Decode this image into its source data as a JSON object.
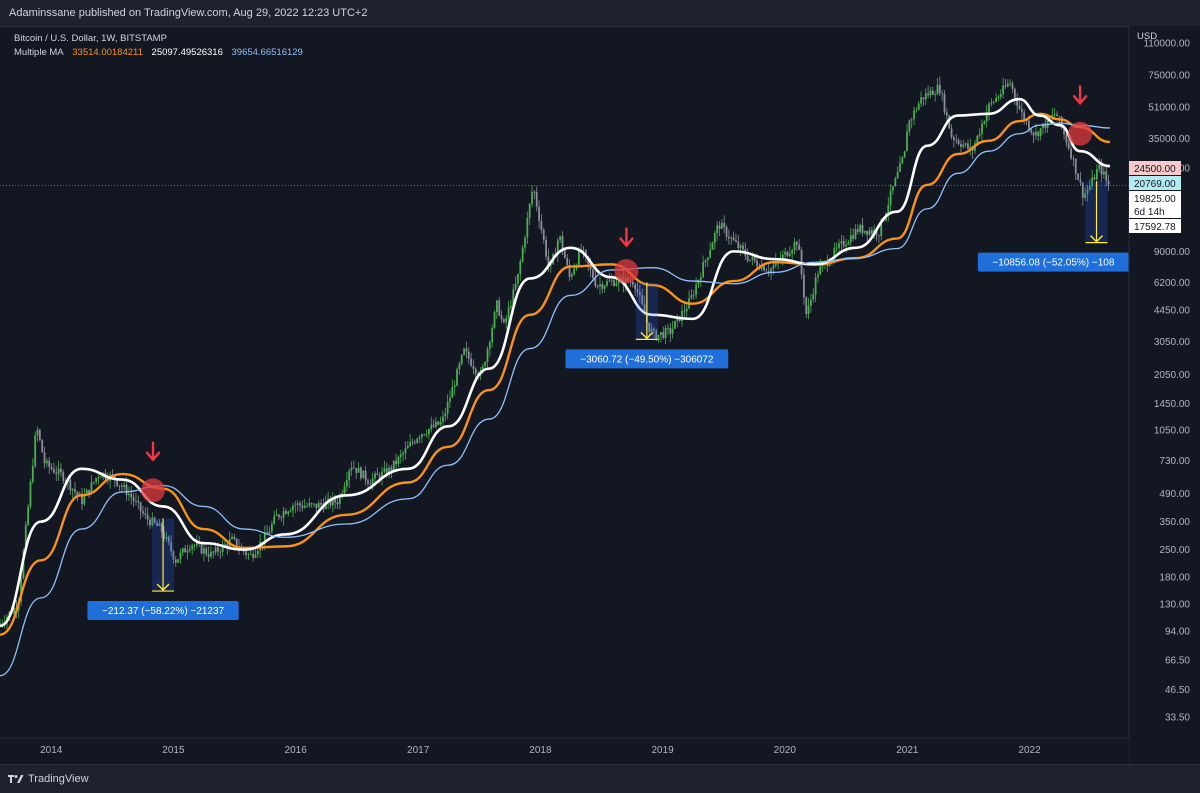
{
  "header": {
    "published_text": "Adaminssane published on TradingView.com, Aug 29, 2022 12:23 UTC+2"
  },
  "footer": {
    "brand": "TradingView"
  },
  "legend": {
    "symbol_line": "Bitcoin / U.S. Dollar, 1W, BITSTAMP",
    "indicator_name": "Multiple MA",
    "ma_values": [
      {
        "value": "33514.00184211",
        "color": "#f7931a"
      },
      {
        "value": "25097.49526316",
        "color": "#ffffff"
      },
      {
        "value": "39654.66516129",
        "color": "#90bff9"
      }
    ]
  },
  "colors": {
    "background": "#131722",
    "up_candle": "#4caf50",
    "down_candle": "#8a8e99",
    "ma_orange": "#f7931a",
    "ma_white": "#ffffff",
    "ma_blue": "#90bff9",
    "arrow_red": "#f23645",
    "circle_red": "#e0393e",
    "badge_blue": "#2962ff",
    "measure_yellow": "#ffeb3b"
  },
  "chart_data": {
    "type": "line",
    "title": "Bitcoin / U.S. Dollar, 1W, BITSTAMP",
    "y_scale": "log",
    "y_unit": "USD",
    "ylim": [
      26,
      135000
    ],
    "x_range": [
      "2013-08-01",
      "2022-10-25"
    ],
    "x_tick_labels": [
      "2014",
      "2015",
      "2016",
      "2017",
      "2018",
      "2019",
      "2020",
      "2021",
      "2022"
    ],
    "y_tick_labels": [
      "110000.00",
      "75000.00",
      "51000.00",
      "35000.00",
      "24500.00",
      "9000.00",
      "6200.00",
      "4450.00",
      "3050.00",
      "2050.00",
      "1450.00",
      "1050.00",
      "730.00",
      "490.00",
      "350.00",
      "250.00",
      "180.00",
      "130.00",
      "94.00",
      "66.50",
      "46.50",
      "33.50"
    ],
    "series": [
      {
        "kind": "price",
        "x": [
          "2013-08-01",
          "2013-10-01",
          "2013-11-25",
          "2013-12-20",
          "2014-02-15",
          "2014-04-10",
          "2014-06-01",
          "2014-07-15",
          "2014-09-01",
          "2014-10-15",
          "2014-12-01",
          "2015-01-15",
          "2015-03-01",
          "2015-05-01",
          "2015-07-01",
          "2015-08-25",
          "2015-10-15",
          "2015-11-10",
          "2016-01-01",
          "2016-03-01",
          "2016-05-15",
          "2016-06-20",
          "2016-08-15",
          "2016-10-15",
          "2016-12-20",
          "2017-01-10",
          "2017-03-20",
          "2017-05-25",
          "2017-07-15",
          "2017-09-01",
          "2017-09-20",
          "2017-11-01",
          "2017-12-17",
          "2018-02-05",
          "2018-03-05",
          "2018-04-05",
          "2018-05-10",
          "2018-06-25",
          "2018-08-15",
          "2018-10-15",
          "2018-11-25",
          "2018-12-15",
          "2019-02-01",
          "2019-04-01",
          "2019-06-25",
          "2019-08-10",
          "2019-09-25",
          "2019-11-25",
          "2020-01-15",
          "2020-02-15",
          "2020-03-13",
          "2020-04-15",
          "2020-06-15",
          "2020-08-15",
          "2020-10-15",
          "2020-11-25",
          "2020-12-31",
          "2021-01-08",
          "2021-02-20",
          "2021-04-14",
          "2021-05-20",
          "2021-07-20",
          "2021-09-07",
          "2021-10-20",
          "2021-11-10",
          "2021-12-15",
          "2022-01-24",
          "2022-02-15",
          "2022-03-28",
          "2022-05-10",
          "2022-06-18",
          "2022-07-10",
          "2022-08-01",
          "2022-08-14",
          "2022-08-29"
        ],
        "y": [
          100,
          130,
          1100,
          700,
          600,
          450,
          630,
          590,
          480,
          370,
          320,
          220,
          270,
          235,
          280,
          230,
          300,
          370,
          430,
          420,
          450,
          700,
          570,
          650,
          900,
          1000,
          1150,
          2700,
          2000,
          4800,
          3600,
          6500,
          19800,
          7000,
          11000,
          6600,
          9200,
          6000,
          6300,
          6300,
          3700,
          3250,
          3450,
          5000,
          12500,
          10000,
          8200,
          7200,
          8900,
          10300,
          4100,
          7000,
          9300,
          11800,
          11400,
          19000,
          29000,
          41000,
          57000,
          64800,
          36000,
          30000,
          51000,
          62000,
          69000,
          47000,
          36500,
          40000,
          47500,
          30000,
          17592.78,
          20000,
          24500,
          23500,
          20000
        ]
      },
      {
        "name": "33514.00184211",
        "x": [
          "2013-08-01",
          "2013-12-01",
          "2014-04-01",
          "2014-08-01",
          "2014-12-01",
          "2015-04-01",
          "2015-08-01",
          "2015-12-01",
          "2016-06-01",
          "2016-12-01",
          "2017-04-01",
          "2017-08-01",
          "2017-12-01",
          "2018-04-01",
          "2018-08-01",
          "2018-12-01",
          "2019-04-01",
          "2019-08-01",
          "2019-12-01",
          "2020-04-01",
          "2020-08-01",
          "2020-12-01",
          "2021-03-01",
          "2021-06-01",
          "2021-09-01",
          "2021-12-01",
          "2022-02-01",
          "2022-04-01",
          "2022-06-01",
          "2022-08-29"
        ],
        "y": [
          90,
          220,
          480,
          620,
          520,
          320,
          255,
          260,
          380,
          560,
          860,
          1700,
          4200,
          7500,
          7700,
          6000,
          4800,
          6300,
          7900,
          7700,
          8300,
          10500,
          20000,
          29000,
          34000,
          43000,
          47000,
          44000,
          40000,
          33514
        ]
      },
      {
        "name": "25097.49526316",
        "x": [
          "2013-08-01",
          "2013-12-01",
          "2014-04-01",
          "2014-08-01",
          "2014-12-01",
          "2015-04-01",
          "2015-08-01",
          "2015-12-01",
          "2016-06-01",
          "2016-12-01",
          "2017-04-01",
          "2017-08-01",
          "2017-12-01",
          "2018-04-01",
          "2018-08-01",
          "2018-12-01",
          "2019-04-01",
          "2019-08-01",
          "2019-12-01",
          "2020-04-01",
          "2020-08-01",
          "2020-12-01",
          "2021-03-01",
          "2021-06-01",
          "2021-09-01",
          "2021-12-01",
          "2022-02-01",
          "2022-04-01",
          "2022-06-01",
          "2022-08-29"
        ],
        "y": [
          100,
          350,
          660,
          580,
          420,
          270,
          250,
          300,
          480,
          660,
          1100,
          2200,
          6500,
          9400,
          6600,
          4200,
          4000,
          9000,
          8200,
          7700,
          9400,
          14500,
          32000,
          46000,
          47000,
          56000,
          46000,
          41000,
          30000,
          25097
        ]
      },
      {
        "name": "39654.66516129",
        "x": [
          "2013-08-01",
          "2013-12-01",
          "2014-04-01",
          "2014-08-01",
          "2014-12-01",
          "2015-04-01",
          "2015-08-01",
          "2015-12-01",
          "2016-06-01",
          "2016-12-01",
          "2017-04-01",
          "2017-08-01",
          "2017-12-01",
          "2018-04-01",
          "2018-08-01",
          "2018-12-01",
          "2019-04-01",
          "2019-08-01",
          "2019-12-01",
          "2020-04-01",
          "2020-08-01",
          "2020-12-01",
          "2021-03-01",
          "2021-06-01",
          "2021-09-01",
          "2021-12-01",
          "2022-02-01",
          "2022-04-01",
          "2022-06-01",
          "2022-08-29"
        ],
        "y": [
          55,
          140,
          320,
          500,
          540,
          420,
          320,
          290,
          340,
          460,
          690,
          1200,
          2800,
          5300,
          7200,
          7400,
          6300,
          6100,
          7000,
          7900,
          8300,
          9300,
          15000,
          23000,
          30000,
          37000,
          41000,
          42000,
          41000,
          39654
        ]
      }
    ],
    "annotations": {
      "arrows": [
        {
          "x": "2014-11-01",
          "y": 800
        },
        {
          "x": "2018-09-15",
          "y": 10500
        },
        {
          "x": "2022-06-01",
          "y": 58000
        }
      ],
      "circles": [
        {
          "x": "2014-11-01",
          "y": 510
        },
        {
          "x": "2018-09-15",
          "y": 7100
        },
        {
          "x": "2022-06-01",
          "y": 37000
        }
      ],
      "measures": [
        {
          "x": "2014-12-01",
          "y_top": 364,
          "y_bottom": 152,
          "text": "−212.37 (−58.22%) −21237"
        },
        {
          "x": "2018-11-15",
          "y_top": 6189,
          "y_bottom": 3128,
          "text": "−3060.72 (−49.50%) −306072"
        },
        {
          "x": "2022-07-20",
          "y_top": 20860,
          "y_bottom": 10000,
          "text": "−10856.08 (−52.05%) −108"
        }
      ]
    },
    "price_labels": [
      {
        "value": "24500.00",
        "y": 24500,
        "bg": "#f7c9c9",
        "fg": "#131722"
      },
      {
        "value": "20769.00",
        "y": 20769,
        "bg": "#b2ebf2",
        "fg": "#131722"
      },
      {
        "value": "19825.00",
        "y": 19825,
        "bg": "#ffffff",
        "fg": "#131722"
      },
      {
        "value": "6d 14h",
        "y": 17800,
        "bg": "#ffffff",
        "fg": "#131722"
      },
      {
        "value": "17592.78",
        "y": 15500,
        "bg": "#ffffff",
        "fg": "#131722"
      }
    ],
    "y_axis_label": "USD"
  }
}
